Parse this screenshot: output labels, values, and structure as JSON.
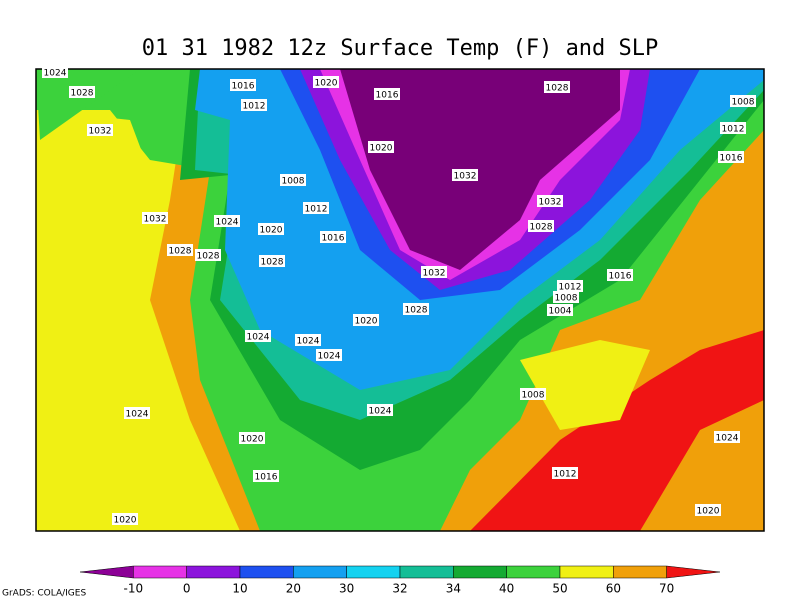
{
  "header": {
    "title": "01 31 1982 12z Surface Temp (F) and SLP"
  },
  "isobar_labels": [
    "1024",
    "1028",
    "1032",
    "1016",
    "1020",
    "1016",
    "1028",
    "1008",
    "1012",
    "1012",
    "1016",
    "1020",
    "1008",
    "1032",
    "1012",
    "1032",
    "1024",
    "1020",
    "1032",
    "1016",
    "1028",
    "1028",
    "1028",
    "1028",
    "1032",
    "1016",
    "1012",
    "1008",
    "1028",
    "1004",
    "1020",
    "1024",
    "1024",
    "1024",
    "1008",
    "1024",
    "1024",
    "1020",
    "1024",
    "1016",
    "1012",
    "1020",
    "1020"
  ],
  "colorbar": {
    "labels": [
      "-10",
      "0",
      "10",
      "20",
      "30",
      "32",
      "34",
      "40",
      "50",
      "60",
      "70"
    ],
    "colors": [
      "#8c0096",
      "#e632e6",
      "#8c14dc",
      "#1e50f0",
      "#14a0f0",
      "#14d2f0",
      "#14be96",
      "#14aa32",
      "#3cd23c",
      "#f0f014",
      "#f0a00a",
      "#f01414"
    ]
  },
  "footer": "GrADS: COLA/IGES"
}
